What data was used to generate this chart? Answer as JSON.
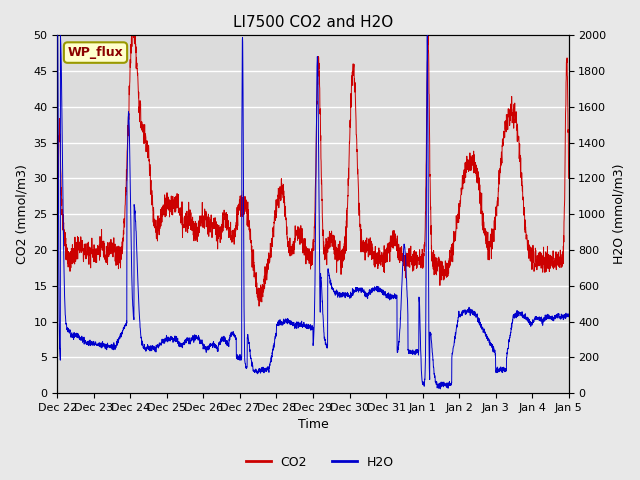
{
  "title": "LI7500 CO2 and H2O",
  "xlabel": "Time",
  "ylabel_left": "CO2 (mmol/m3)",
  "ylabel_right": "H2O (mmol/m3)",
  "ylim_left": [
    0,
    50
  ],
  "ylim_right": [
    0,
    2000
  ],
  "yticks_left": [
    0,
    5,
    10,
    15,
    20,
    25,
    30,
    35,
    40,
    45,
    50
  ],
  "yticks_right": [
    0,
    200,
    400,
    600,
    800,
    1000,
    1200,
    1400,
    1600,
    1800,
    2000
  ],
  "xtick_labels": [
    "Dec 22",
    "Dec 23",
    "Dec 24",
    "Dec 25",
    "Dec 26",
    "Dec 27",
    "Dec 28",
    "Dec 29",
    "Dec 30",
    "Dec 31",
    "Jan 1",
    "Jan 2",
    "Jan 3",
    "Jan 4",
    "Jan 5"
  ],
  "watermark_text": "WP_flux",
  "co2_color": "#CC0000",
  "h2o_color": "#0000CC",
  "background_color": "#E8E8E8",
  "axes_bg_color": "#DCDCDC",
  "grid_color": "#FFFFFF",
  "title_fontsize": 11,
  "axis_label_fontsize": 9,
  "tick_fontsize": 8,
  "legend_fontsize": 9,
  "co2_label": "CO2",
  "h2o_label": "H2O"
}
